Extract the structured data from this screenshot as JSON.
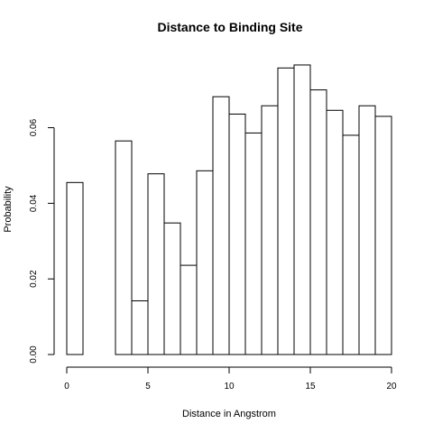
{
  "chart_data": {
    "type": "bar",
    "title": "Distance to Binding Site",
    "xlabel": "Distance in Angstrom",
    "ylabel": "Probability",
    "bin_edges": [
      0,
      1,
      2,
      3,
      4,
      5,
      6,
      7,
      8,
      9,
      10,
      11,
      12,
      13,
      14,
      15,
      16,
      17,
      18,
      19,
      20
    ],
    "values": [
      0.0455,
      0.0,
      0.0,
      0.0565,
      0.0142,
      0.0478,
      0.0348,
      0.0236,
      0.0486,
      0.0682,
      0.0636,
      0.0586,
      0.0658,
      0.0758,
      0.0766,
      0.07,
      0.0646,
      0.058,
      0.0658,
      0.063
    ],
    "xlim": [
      0,
      20
    ],
    "ylim": [
      0,
      0.0766
    ],
    "x_ticks": [
      0,
      5,
      10,
      15,
      20
    ],
    "x_tick_labels": [
      "0",
      "5",
      "10",
      "15",
      "20"
    ],
    "y_ticks": [
      0.0,
      0.02,
      0.04,
      0.06
    ],
    "y_tick_labels": [
      "0.00",
      "0.02",
      "0.04",
      "0.06"
    ],
    "grid": false,
    "legend": "none",
    "colors": {
      "bar_fill": "#ffffff",
      "bar_stroke": "#000000",
      "axis": "#000000",
      "background": "#ffffff"
    }
  }
}
